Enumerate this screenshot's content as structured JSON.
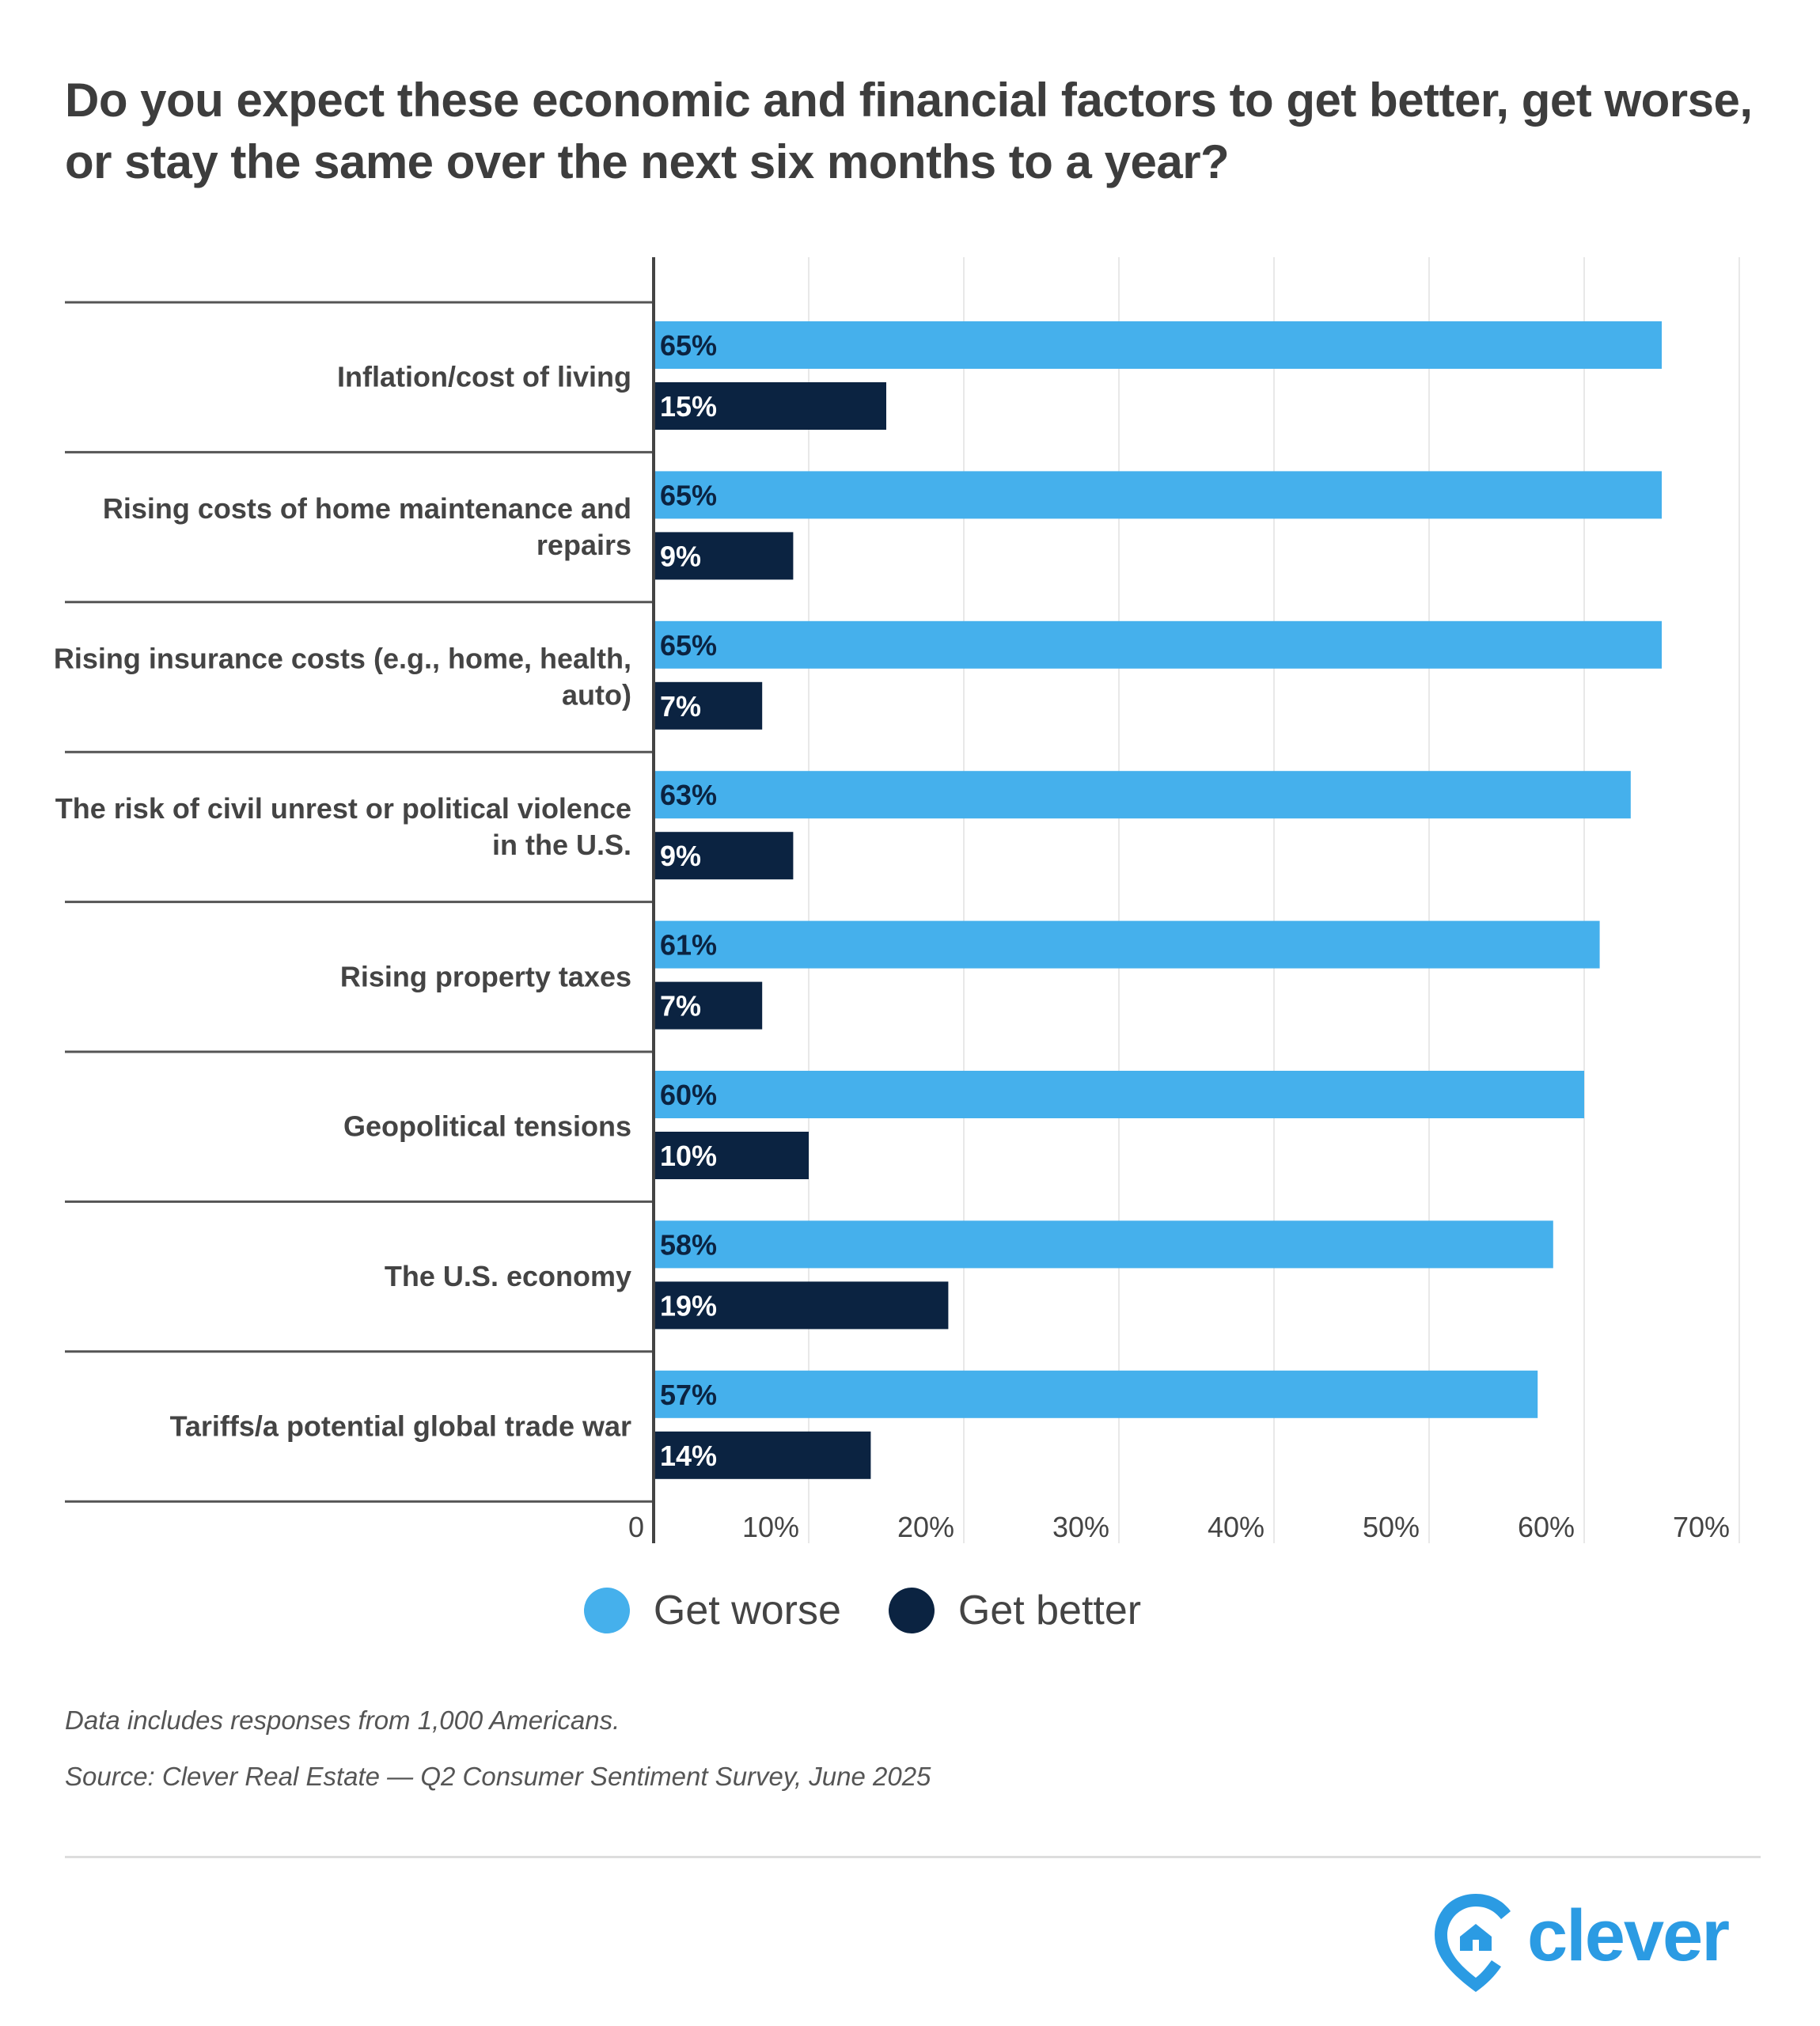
{
  "title": "Do you expect these economic and financial factors to get better, get worse, or stay the same over the next six months to a year?",
  "chart_data": {
    "type": "bar",
    "orientation": "horizontal",
    "categories": [
      [
        "Inflation/cost of living"
      ],
      [
        "Rising costs of home maintenance and",
        "repairs"
      ],
      [
        "Rising insurance costs (e.g., home, health,",
        "auto)"
      ],
      [
        "The risk of civil unrest or political violence",
        "in the U.S."
      ],
      [
        "Rising property taxes"
      ],
      [
        "Geopolitical tensions"
      ],
      [
        "The U.S. economy"
      ],
      [
        "Tariffs/a potential global trade war"
      ]
    ],
    "series": [
      {
        "name": "Get worse",
        "color": "#45b0ec",
        "values": [
          65,
          65,
          65,
          63,
          61,
          60,
          58,
          57
        ]
      },
      {
        "name": "Get better",
        "color": "#0b2341",
        "values": [
          15,
          9,
          7,
          9,
          7,
          10,
          19,
          14
        ]
      }
    ],
    "xlim": [
      0,
      70
    ],
    "xticks": [
      "0",
      "10%",
      "20%",
      "30%",
      "40%",
      "50%",
      "60%",
      "70%"
    ],
    "grid": true,
    "legend": "bottom"
  },
  "footnotes": {
    "note": "Data includes responses from 1,000 Americans.",
    "source": "Source: Clever Real Estate — Q2 Consumer Sentiment Survey, June 2025"
  },
  "logo": {
    "text": "clever",
    "color": "#2b9be3"
  }
}
